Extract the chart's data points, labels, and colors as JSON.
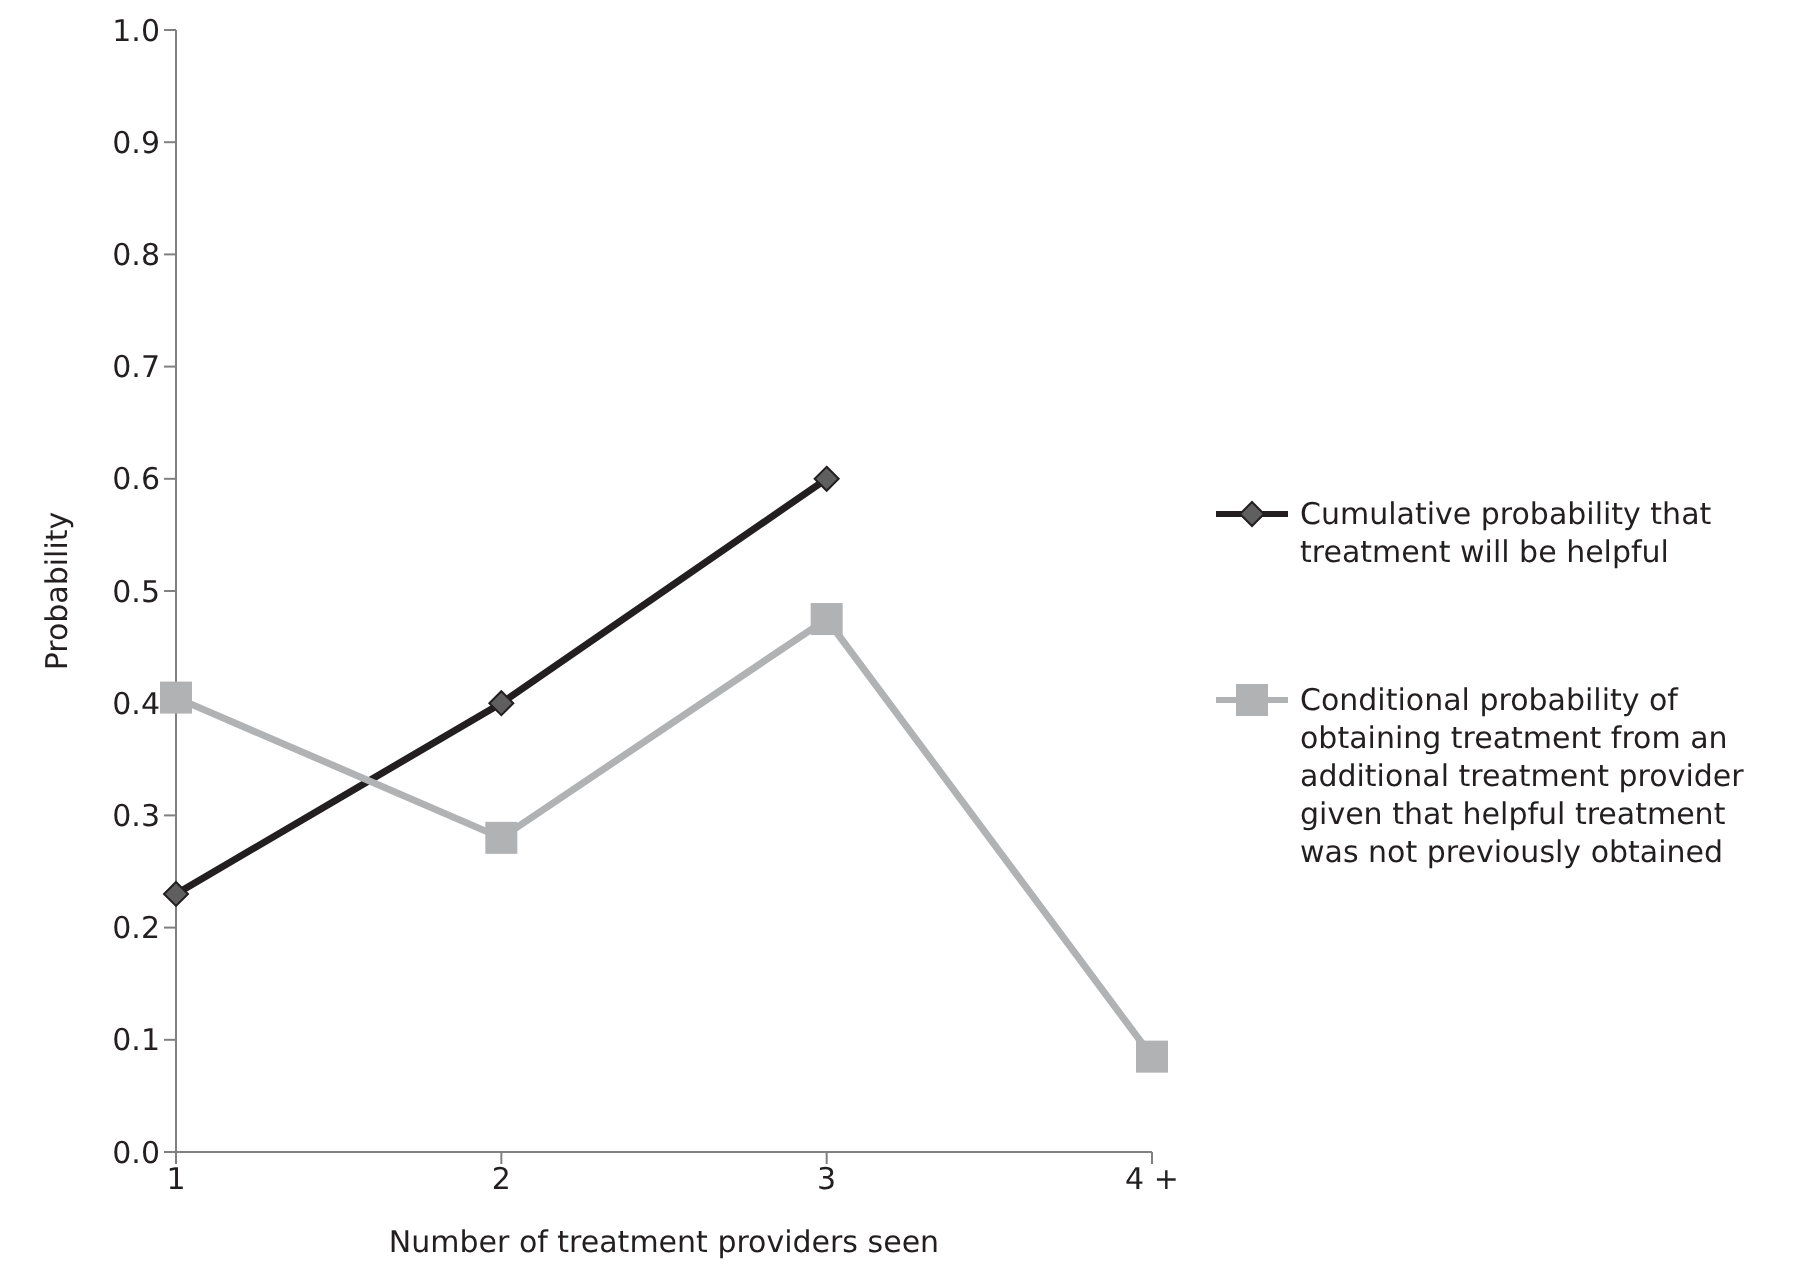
{
  "chart_data": {
    "type": "line",
    "xlabel": "Number of treatment providers seen",
    "ylabel": "Probability",
    "categories": [
      "1",
      "2",
      "3",
      "4 +"
    ],
    "series": [
      {
        "name": "Cumulative probability that treatment will be helpful",
        "color": "#231f20",
        "marker": "diamond",
        "values": [
          0.23,
          0.4,
          0.6,
          null
        ]
      },
      {
        "name": "Conditional probability of obtaining treatment from an additional treatment provider given that helpful treatment was not previously obtained",
        "color": "#b1b2b4",
        "marker": "square",
        "values": [
          0.405,
          0.28,
          0.475,
          0.085
        ]
      }
    ],
    "ylim": [
      0,
      1
    ],
    "yticks": [
      {
        "value": 0,
        "label": "0.0"
      },
      0.1,
      0.2,
      0.3,
      0.4,
      0.5,
      0.6,
      0.7,
      0.8,
      0.9,
      {
        "value": 1,
        "label": "1.0"
      }
    ],
    "grid": false,
    "legend": "right"
  }
}
